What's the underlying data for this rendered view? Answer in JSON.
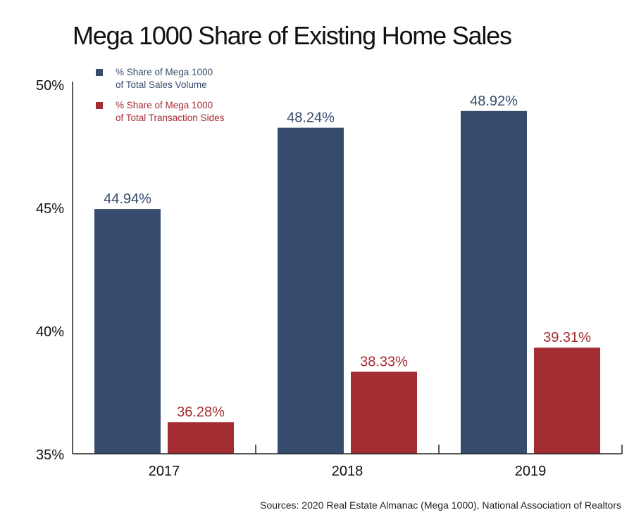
{
  "chart_data": {
    "type": "bar",
    "title": "Mega 1000 Share of Existing Home Sales",
    "categories": [
      "2017",
      "2018",
      "2019"
    ],
    "series": [
      {
        "name": "% Share of Mega 1000 of Total Sales Volume",
        "legend_lines": [
          "% Share of Mega 1000",
          "of Total Sales Volume"
        ],
        "color": "#364c6d",
        "values": [
          44.94,
          48.24,
          48.92
        ],
        "labels": [
          "44.94%",
          "48.24%",
          "48.92%"
        ]
      },
      {
        "name": "% Share of Mega 1000 of Total Transaction Sides",
        "legend_lines": [
          "% Share of Mega 1000",
          "of Total Transaction Sides"
        ],
        "color": "#a42c33",
        "values": [
          36.28,
          38.33,
          39.31
        ],
        "labels": [
          "36.28%",
          "38.33%",
          "39.31%"
        ]
      }
    ],
    "xlabel": "",
    "ylabel": "",
    "ylim": [
      35,
      50
    ],
    "yticks": [
      35,
      40,
      45,
      50
    ],
    "ytick_labels": [
      "35%",
      "40%",
      "45%",
      "50%"
    ],
    "grid": false,
    "legend_position": "top-left",
    "source": "Sources: 2020 Real Estate Almanac (Mega 1000), National Association of Realtors"
  }
}
